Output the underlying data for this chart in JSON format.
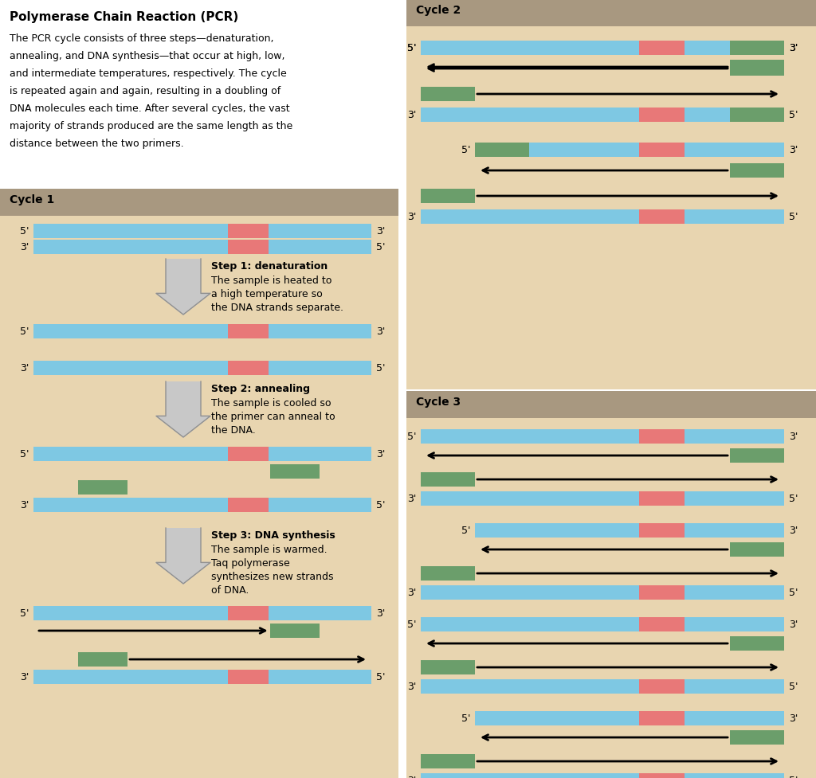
{
  "colors": {
    "blue_dna": "#7EC8E3",
    "red_segment": "#E87878",
    "green_primer": "#6B9E6B",
    "bg_tan": "#E8D5B0",
    "bg_header": "#A89880",
    "bg_white": "#FFFFFF"
  },
  "title": "Polymerase Chain Reaction (PCR)",
  "desc_lines": [
    "The PCR cycle consists of three steps—denaturation,",
    "annealing, and DNA synthesis—that occur at high, low,",
    "and intermediate temperatures, respectively. The cycle",
    "is repeated again and again, resulting in a doubling of",
    "DNA molecules each time. After several cycles, the vast",
    "majority of strands produced are the same length as the",
    "distance between the two primers."
  ]
}
